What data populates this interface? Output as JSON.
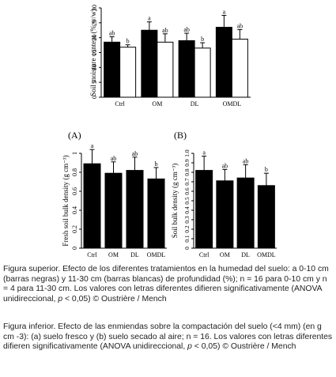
{
  "chart_data": [
    {
      "type": "bar",
      "ylabel": "Soil moisture content (% w/w)",
      "ylim": [
        0,
        30
      ],
      "yticks": [
        0,
        5,
        10,
        15,
        20,
        25,
        30
      ],
      "categories": [
        "Ctrl",
        "OM",
        "DL",
        "OMDL"
      ],
      "series": [
        {
          "values": [
            18.5,
            22.5,
            19.0,
            23.5
          ],
          "errors": [
            1.8,
            2.8,
            2.5,
            4.0
          ],
          "letters": [
            "ab",
            "a",
            "ab",
            "a"
          ],
          "color": "#000000"
        },
        {
          "values": [
            16.8,
            18.5,
            16.5,
            19.5
          ],
          "errors": [
            0.8,
            2.8,
            1.8,
            3.2
          ],
          "letters": [
            "b",
            "ab",
            "b",
            "ab"
          ],
          "color": "#ffffff"
        }
      ]
    },
    {
      "type": "bar",
      "panel_label": "(A)",
      "ylabel": "Fresh soil bulk density (g cm⁻³)",
      "ylim": [
        0,
        1.0
      ],
      "yticks": [
        "0",
        "0.2",
        "0.4",
        "0.6",
        "0.8",
        "1"
      ],
      "categories": [
        "Ctrl",
        "OM",
        "DL",
        "OMDL"
      ],
      "values": [
        0.89,
        0.79,
        0.82,
        0.73
      ],
      "errors": [
        0.15,
        0.12,
        0.14,
        0.12
      ],
      "letters": [
        "a",
        "ab",
        "ab",
        "b"
      ]
    },
    {
      "type": "bar",
      "panel_label": "(B)",
      "ylabel": "Soil bulk density (g cm⁻³)",
      "ylim": [
        0,
        1.0
      ],
      "yticks": [
        "0",
        "0.1",
        "0.2",
        "0.3",
        "0.4",
        "0.5",
        "0.6",
        "0.7",
        "0.8",
        "0.9",
        "1.0"
      ],
      "categories": [
        "Ctrl",
        "OM",
        "DL",
        "OMDL"
      ],
      "values": [
        0.82,
        0.71,
        0.74,
        0.66
      ],
      "errors": [
        0.15,
        0.12,
        0.14,
        0.13
      ],
      "letters": [
        "a",
        "ab",
        "ab",
        "b"
      ]
    }
  ],
  "captions": {
    "top_prefix": "Figura superior. Efecto de los diferentes tratamientos en la humedad del suelo: a  0-10 cm (barras negras) y 11-30 cm (barras blancas) de profundidad (%); n = 16 para 0-10 cm y n = 4 para 11-30 cm. Los valores con letras diferentes difieren significativamente (ANOVA unidireccional, ",
    "top_p": "p",
    "top_suffix": " < 0,05) © Oustrière / Mench",
    "bottom_prefix": "Figura inferior. Efecto de las enmiendas sobre la compactación del suelo (<4 mm) (en g cm -3): (a) suelo fresco y (b) suelo secado al aire; n = 16. Los valores con letras diferentes difieren significativamente (ANOVA unidireccional, ",
    "bottom_p": "p",
    "bottom_suffix": " < 0,05) © Oustrière / Mench"
  }
}
